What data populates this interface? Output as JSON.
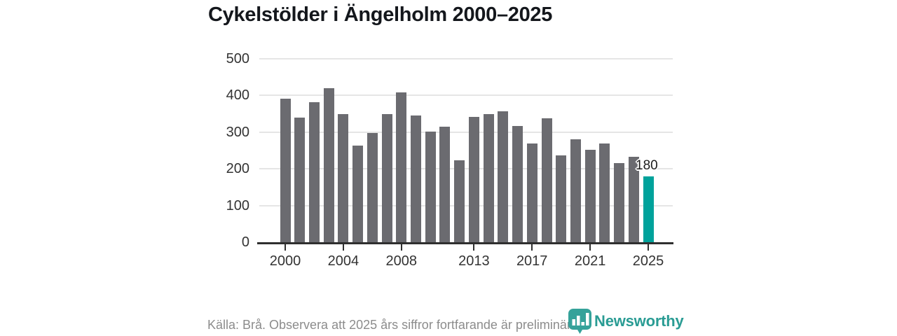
{
  "title": "Cykelstölder i Ängelholm 2000–2025",
  "footer": {
    "source_text": "Källa: Brå. Observera att 2025 års siffror fortfarande är preliminära.",
    "logo_text": "Newsworthy"
  },
  "colors": {
    "bar": "#6b6b70",
    "highlight": "#00a29b",
    "grid": "#e5e5e5",
    "axis": "#2f2f2f",
    "title_text": "#14171c",
    "tick_text": "#333333",
    "source_text": "#8c8c8c",
    "logo_icon": "#35a29a",
    "logo_text": "#2a9c94"
  },
  "chart_data": {
    "type": "bar",
    "title": "Cykelstölder i Ängelholm 2000–2025",
    "categories": [
      2000,
      2001,
      2002,
      2003,
      2004,
      2005,
      2006,
      2007,
      2008,
      2009,
      2010,
      2011,
      2012,
      2013,
      2014,
      2015,
      2016,
      2017,
      2018,
      2019,
      2020,
      2021,
      2022,
      2023,
      2024,
      2025
    ],
    "values": [
      391,
      340,
      381,
      419,
      349,
      264,
      298,
      349,
      408,
      346,
      301,
      315,
      224,
      342,
      349,
      357,
      317,
      269,
      338,
      236,
      280,
      252,
      270,
      215,
      233,
      180
    ],
    "highlight_index": 25,
    "highlight_label": "180",
    "xlabel": "",
    "ylabel": "",
    "ylim": [
      0,
      500
    ],
    "yticks": [
      0,
      100,
      200,
      300,
      400,
      500
    ],
    "xticks": [
      2000,
      2004,
      2008,
      2013,
      2017,
      2021,
      2025
    ],
    "grid": "horizontal",
    "legend": "none"
  }
}
